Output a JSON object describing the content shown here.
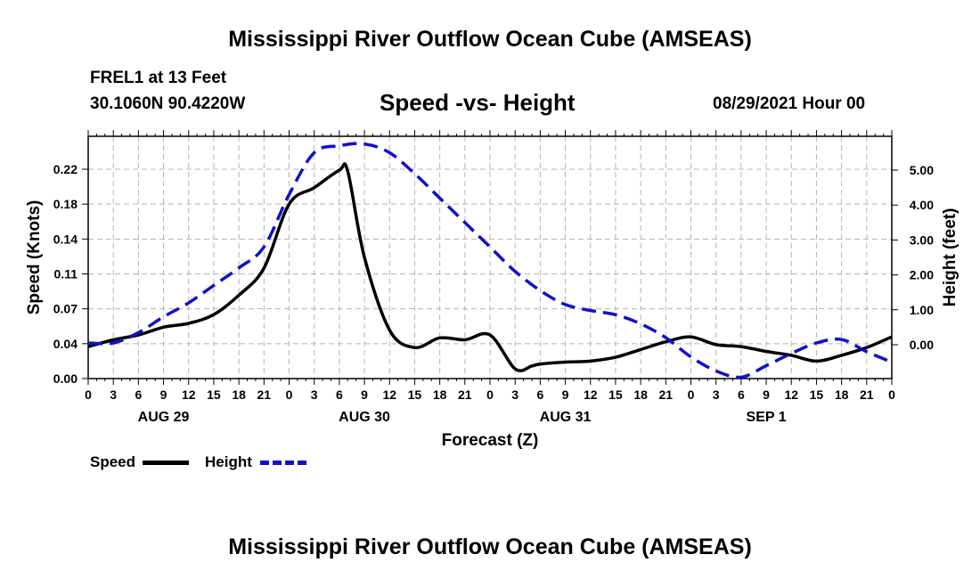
{
  "header": {
    "title": "Mississippi River Outflow Ocean Cube (AMSEAS)",
    "station": "FREL1 at 13 Feet",
    "coords": "30.1060N  90.4220W",
    "subtitle": "Speed -vs- Height",
    "datetime": "08/29/2021 Hour 00"
  },
  "footer": {
    "title": "Mississippi River Outflow Ocean Cube (AMSEAS)"
  },
  "legend": {
    "speed_label": "Speed",
    "height_label": "Height"
  },
  "colors": {
    "speed": "#000000",
    "height": "#1010cc",
    "grid": "#b4b4b4"
  },
  "chart_data": {
    "type": "line",
    "title": "Speed -vs- Height",
    "xlabel": "Forecast (Z)",
    "ylabel_left": "Speed (Knots)",
    "ylabel_right": "Height (feet)",
    "x_range_hours": [
      0,
      96
    ],
    "x_tick_labels": [
      "0",
      "3",
      "6",
      "9",
      "12",
      "15",
      "18",
      "21",
      "0",
      "3",
      "6",
      "9",
      "12",
      "15",
      "18",
      "21",
      "0",
      "3",
      "6",
      "9",
      "12",
      "15",
      "18",
      "21",
      "0",
      "3",
      "6",
      "9",
      "12",
      "15",
      "18",
      "21",
      "0"
    ],
    "day_labels": [
      {
        "label": "AUG 29",
        "hour": 9
      },
      {
        "label": "AUG 30",
        "hour": 33
      },
      {
        "label": "AUG 31",
        "hour": 57
      },
      {
        "label": "SEP 1",
        "hour": 81
      }
    ],
    "left_axis": {
      "range": [
        0,
        0.25
      ],
      "ticks": [
        0.0,
        0.036,
        0.072,
        0.108,
        0.144,
        0.18,
        0.216
      ],
      "tick_labels": [
        "0.00",
        "0.04",
        "0.07",
        "0.11",
        "0.14",
        "0.18",
        "0.22"
      ]
    },
    "right_axis": {
      "range": [
        -0.97,
        5.97
      ],
      "ticks": [
        0,
        1,
        2,
        3,
        4,
        5
      ],
      "tick_labels": [
        "0.00",
        "1.00",
        "2.00",
        "3.00",
        "4.00",
        "5.00"
      ]
    },
    "series": [
      {
        "name": "Speed",
        "axis": "left",
        "style": "solid",
        "x": [
          0,
          3,
          6,
          9,
          12,
          15,
          18,
          21,
          24,
          27,
          30,
          31,
          33,
          36,
          39,
          42,
          45,
          48,
          51,
          53,
          54,
          57,
          60,
          63,
          66,
          69,
          72,
          75,
          78,
          81,
          84,
          87,
          90,
          93,
          96
        ],
        "y": [
          0.033,
          0.04,
          0.045,
          0.053,
          0.057,
          0.066,
          0.086,
          0.114,
          0.18,
          0.197,
          0.215,
          0.214,
          0.125,
          0.05,
          0.032,
          0.042,
          0.04,
          0.045,
          0.01,
          0.013,
          0.015,
          0.017,
          0.018,
          0.022,
          0.03,
          0.038,
          0.043,
          0.035,
          0.033,
          0.028,
          0.024,
          0.018,
          0.024,
          0.032,
          0.043
        ]
      },
      {
        "name": "Height",
        "axis": "right",
        "style": "dashed",
        "x": [
          0,
          3,
          6,
          9,
          12,
          15,
          18,
          21,
          24,
          27,
          30,
          33,
          36,
          39,
          42,
          45,
          48,
          51,
          54,
          57,
          60,
          63,
          66,
          69,
          72,
          75,
          78,
          81,
          84,
          87,
          90,
          93,
          96
        ],
        "y": [
          0.05,
          0.05,
          0.35,
          0.8,
          1.2,
          1.7,
          2.2,
          2.8,
          4.3,
          5.5,
          5.7,
          5.75,
          5.5,
          4.9,
          4.2,
          3.5,
          2.8,
          2.1,
          1.55,
          1.15,
          0.98,
          0.86,
          0.6,
          0.2,
          -0.35,
          -0.75,
          -0.93,
          -0.6,
          -0.25,
          0.05,
          0.15,
          -0.2,
          -0.5
        ]
      }
    ]
  }
}
